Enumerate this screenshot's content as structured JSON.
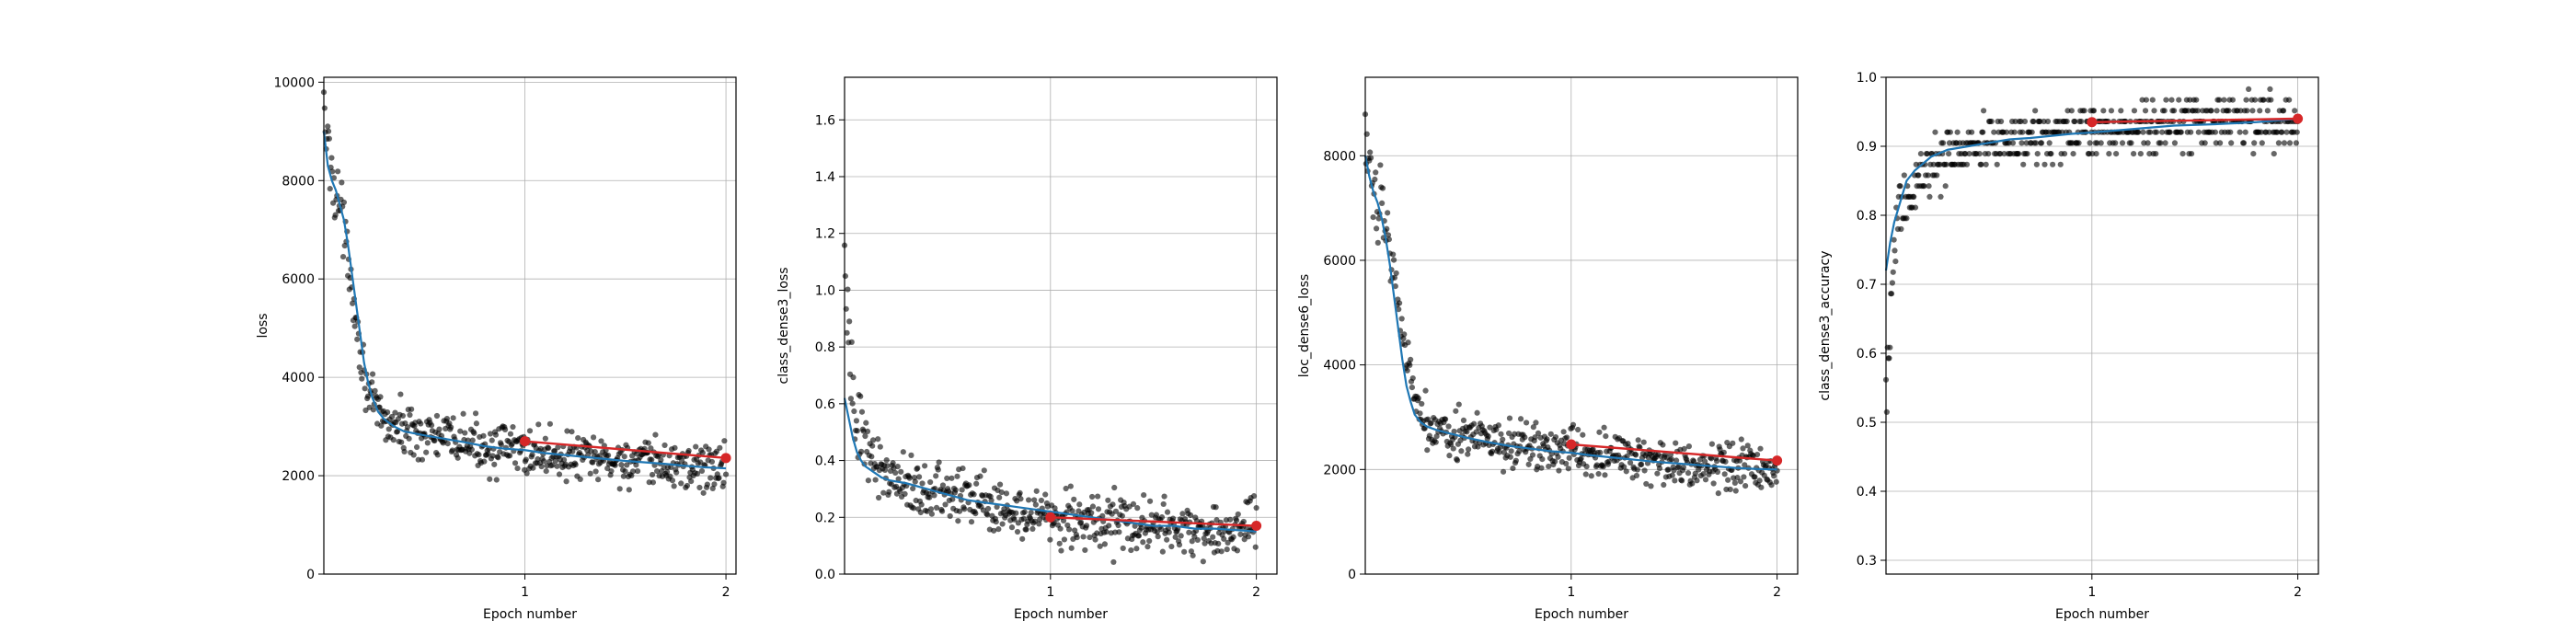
{
  "figure": {
    "panels": [
      {
        "id": "loss",
        "chart_data": {
          "type": "scatter",
          "title": "",
          "xlabel": "Epoch number",
          "ylabel": "loss",
          "xlim": [
            0,
            2.05
          ],
          "ylim": [
            0,
            10100
          ],
          "xticks": [
            1,
            2
          ],
          "yticks": [
            0,
            2000,
            4000,
            6000,
            8000,
            10000
          ],
          "grid": true,
          "legend": "none",
          "series": [
            {
              "role": "batch-points",
              "color": "#000000",
              "profile": [
                [
                  0,
                  9300
                ],
                [
                  0.03,
                  8400
                ],
                [
                  0.08,
                  7500
                ],
                [
                  0.13,
                  6200
                ],
                [
                  0.18,
                  4600
                ],
                [
                  0.23,
                  3500
                ],
                [
                  0.3,
                  3100
                ],
                [
                  0.4,
                  2950
                ],
                [
                  0.6,
                  2750
                ],
                [
                  0.8,
                  2600
                ],
                [
                  1.0,
                  2500
                ],
                [
                  1.3,
                  2350
                ],
                [
                  1.6,
                  2250
                ],
                [
                  2.0,
                  2150
                ]
              ],
              "spread": 350,
              "count": 520
            },
            {
              "role": "smoothed",
              "color": "#1f77b4",
              "x": [
                0,
                0.02,
                0.04,
                0.06,
                0.08,
                0.1,
                0.12,
                0.14,
                0.16,
                0.18,
                0.2,
                0.22,
                0.24,
                0.27,
                0.3,
                0.35,
                0.4,
                0.5,
                0.6,
                0.7,
                0.8,
                0.9,
                1.0,
                1.1,
                1.2,
                1.3,
                1.4,
                1.5,
                1.6,
                1.7,
                1.8,
                1.9,
                2.0
              ],
              "y": [
                9000,
                8300,
                8000,
                7800,
                7500,
                7200,
                6700,
                6100,
                5500,
                4900,
                4300,
                3900,
                3600,
                3300,
                3150,
                3000,
                2900,
                2820,
                2750,
                2680,
                2600,
                2550,
                2520,
                2460,
                2420,
                2380,
                2340,
                2300,
                2270,
                2240,
                2200,
                2170,
                2150
              ]
            },
            {
              "role": "epoch-mean",
              "color": "#d62728",
              "x": [
                1,
                2
              ],
              "y": [
                2700,
                2360
              ]
            }
          ]
        }
      },
      {
        "id": "class_dense3_loss",
        "chart_data": {
          "type": "scatter",
          "title": "",
          "xlabel": "Epoch number",
          "ylabel": "class_dense3_loss",
          "xlim": [
            0,
            2.1
          ],
          "ylim": [
            0,
            1.75
          ],
          "xticks": [
            1,
            2
          ],
          "yticks": [
            0,
            0.2,
            0.4,
            0.6,
            0.8,
            1.0,
            1.2,
            1.4,
            1.6
          ],
          "ytick_labels": [
            "0.0",
            "0.2",
            "0.4",
            "0.6",
            "0.8",
            "1.0",
            "1.2",
            "1.4",
            "1.6"
          ],
          "grid": true,
          "legend": "none",
          "series": [
            {
              "role": "batch-points",
              "color": "#000000",
              "profile": [
                [
                  0,
                  1.1
                ],
                [
                  0.02,
                  0.75
                ],
                [
                  0.06,
                  0.55
                ],
                [
                  0.12,
                  0.42
                ],
                [
                  0.2,
                  0.36
                ],
                [
                  0.3,
                  0.32
                ],
                [
                  0.5,
                  0.28
                ],
                [
                  0.7,
                  0.25
                ],
                [
                  1.0,
                  0.21
                ],
                [
                  1.3,
                  0.18
                ],
                [
                  1.6,
                  0.16
                ],
                [
                  2.0,
                  0.15
                ]
              ],
              "spread": 0.07,
              "count": 520
            },
            {
              "role": "smoothed",
              "color": "#1f77b4",
              "x": [
                0,
                0.02,
                0.04,
                0.06,
                0.08,
                0.1,
                0.14,
                0.18,
                0.22,
                0.3,
                0.4,
                0.5,
                0.6,
                0.7,
                0.8,
                0.9,
                1.0,
                1.1,
                1.2,
                1.3,
                1.4,
                1.5,
                1.6,
                1.7,
                1.8,
                1.9,
                2.0
              ],
              "y": [
                0.62,
                0.55,
                0.48,
                0.43,
                0.4,
                0.38,
                0.36,
                0.34,
                0.33,
                0.32,
                0.3,
                0.28,
                0.26,
                0.25,
                0.24,
                0.23,
                0.22,
                0.21,
                0.2,
                0.19,
                0.18,
                0.17,
                0.17,
                0.16,
                0.16,
                0.155,
                0.15
              ]
            },
            {
              "role": "epoch-mean",
              "color": "#d62728",
              "x": [
                1,
                2
              ],
              "y": [
                0.2,
                0.17
              ]
            }
          ]
        }
      },
      {
        "id": "loc_dense6_loss",
        "chart_data": {
          "type": "scatter",
          "title": "",
          "xlabel": "Epoch number",
          "ylabel": "loc_dense6_loss",
          "xlim": [
            0,
            2.1
          ],
          "ylim": [
            0,
            9500
          ],
          "xticks": [
            1,
            2
          ],
          "yticks": [
            0,
            2000,
            4000,
            6000,
            8000
          ],
          "grid": true,
          "legend": "none",
          "series": [
            {
              "role": "batch-points",
              "color": "#000000",
              "profile": [
                [
                  0,
                  8000
                ],
                [
                  0.05,
                  7400
                ],
                [
                  0.1,
                  6700
                ],
                [
                  0.15,
                  5500
                ],
                [
                  0.2,
                  4200
                ],
                [
                  0.25,
                  3300
                ],
                [
                  0.3,
                  2900
                ],
                [
                  0.4,
                  2750
                ],
                [
                  0.6,
                  2550
                ],
                [
                  0.8,
                  2400
                ],
                [
                  1.0,
                  2350
                ],
                [
                  1.3,
                  2200
                ],
                [
                  1.6,
                  2100
                ],
                [
                  2.0,
                  2000
                ]
              ],
              "spread": 320,
              "count": 520
            },
            {
              "role": "smoothed",
              "color": "#1f77b4",
              "x": [
                0,
                0.02,
                0.04,
                0.06,
                0.08,
                0.1,
                0.12,
                0.14,
                0.16,
                0.18,
                0.2,
                0.22,
                0.24,
                0.27,
                0.3,
                0.35,
                0.4,
                0.5,
                0.6,
                0.7,
                0.8,
                0.9,
                1.0,
                1.1,
                1.2,
                1.3,
                1.4,
                1.5,
                1.6,
                1.7,
                1.8,
                1.9,
                2.0
              ],
              "y": [
                8000,
                7600,
                7300,
                7100,
                6800,
                6400,
                5900,
                5300,
                4700,
                4100,
                3600,
                3300,
                3050,
                2900,
                2820,
                2750,
                2700,
                2600,
                2520,
                2450,
                2400,
                2350,
                2320,
                2270,
                2230,
                2190,
                2150,
                2120,
                2090,
                2060,
                2030,
                2010,
                2000
              ]
            },
            {
              "role": "epoch-mean",
              "color": "#d62728",
              "x": [
                1,
                2
              ],
              "y": [
                2480,
                2170
              ]
            }
          ]
        }
      },
      {
        "id": "class_dense3_accuracy",
        "chart_data": {
          "type": "scatter",
          "title": "",
          "xlabel": "Epoch number",
          "ylabel": "class_dense3_accuracy",
          "xlim": [
            0,
            2.1
          ],
          "ylim": [
            0.28,
            1.0
          ],
          "xticks": [
            1,
            2
          ],
          "yticks": [
            0.3,
            0.4,
            0.5,
            0.6,
            0.7,
            0.8,
            0.9,
            1.0
          ],
          "ytick_labels": [
            "0.3",
            "0.4",
            "0.5",
            "0.6",
            "0.7",
            "0.8",
            "0.9",
            "1.0"
          ],
          "grid": true,
          "legend": "none",
          "series": [
            {
              "role": "batch-points",
              "color": "#000000",
              "profile": [
                [
                  0,
                  0.5
                ],
                [
                  0.02,
                  0.68
                ],
                [
                  0.05,
                  0.77
                ],
                [
                  0.1,
                  0.83
                ],
                [
                  0.2,
                  0.87
                ],
                [
                  0.4,
                  0.9
                ],
                [
                  0.7,
                  0.91
                ],
                [
                  1.0,
                  0.925
                ],
                [
                  1.5,
                  0.935
                ],
                [
                  2.0,
                  0.94
                ]
              ],
              "spread": 0.03,
              "count": 520,
              "step": 0.0156
            },
            {
              "role": "smoothed",
              "color": "#1f77b4",
              "x": [
                0,
                0.02,
                0.04,
                0.06,
                0.08,
                0.1,
                0.14,
                0.18,
                0.22,
                0.3,
                0.4,
                0.5,
                0.6,
                0.7,
                0.8,
                0.9,
                1.0,
                1.2,
                1.4,
                1.6,
                1.8,
                2.0
              ],
              "y": [
                0.72,
                0.76,
                0.79,
                0.81,
                0.83,
                0.85,
                0.865,
                0.875,
                0.885,
                0.895,
                0.9,
                0.905,
                0.91,
                0.912,
                0.915,
                0.918,
                0.92,
                0.925,
                0.93,
                0.932,
                0.935,
                0.94
              ]
            },
            {
              "role": "epoch-mean",
              "color": "#d62728",
              "x": [
                1,
                2
              ],
              "y": [
                0.935,
                0.94
              ]
            }
          ]
        }
      }
    ]
  }
}
